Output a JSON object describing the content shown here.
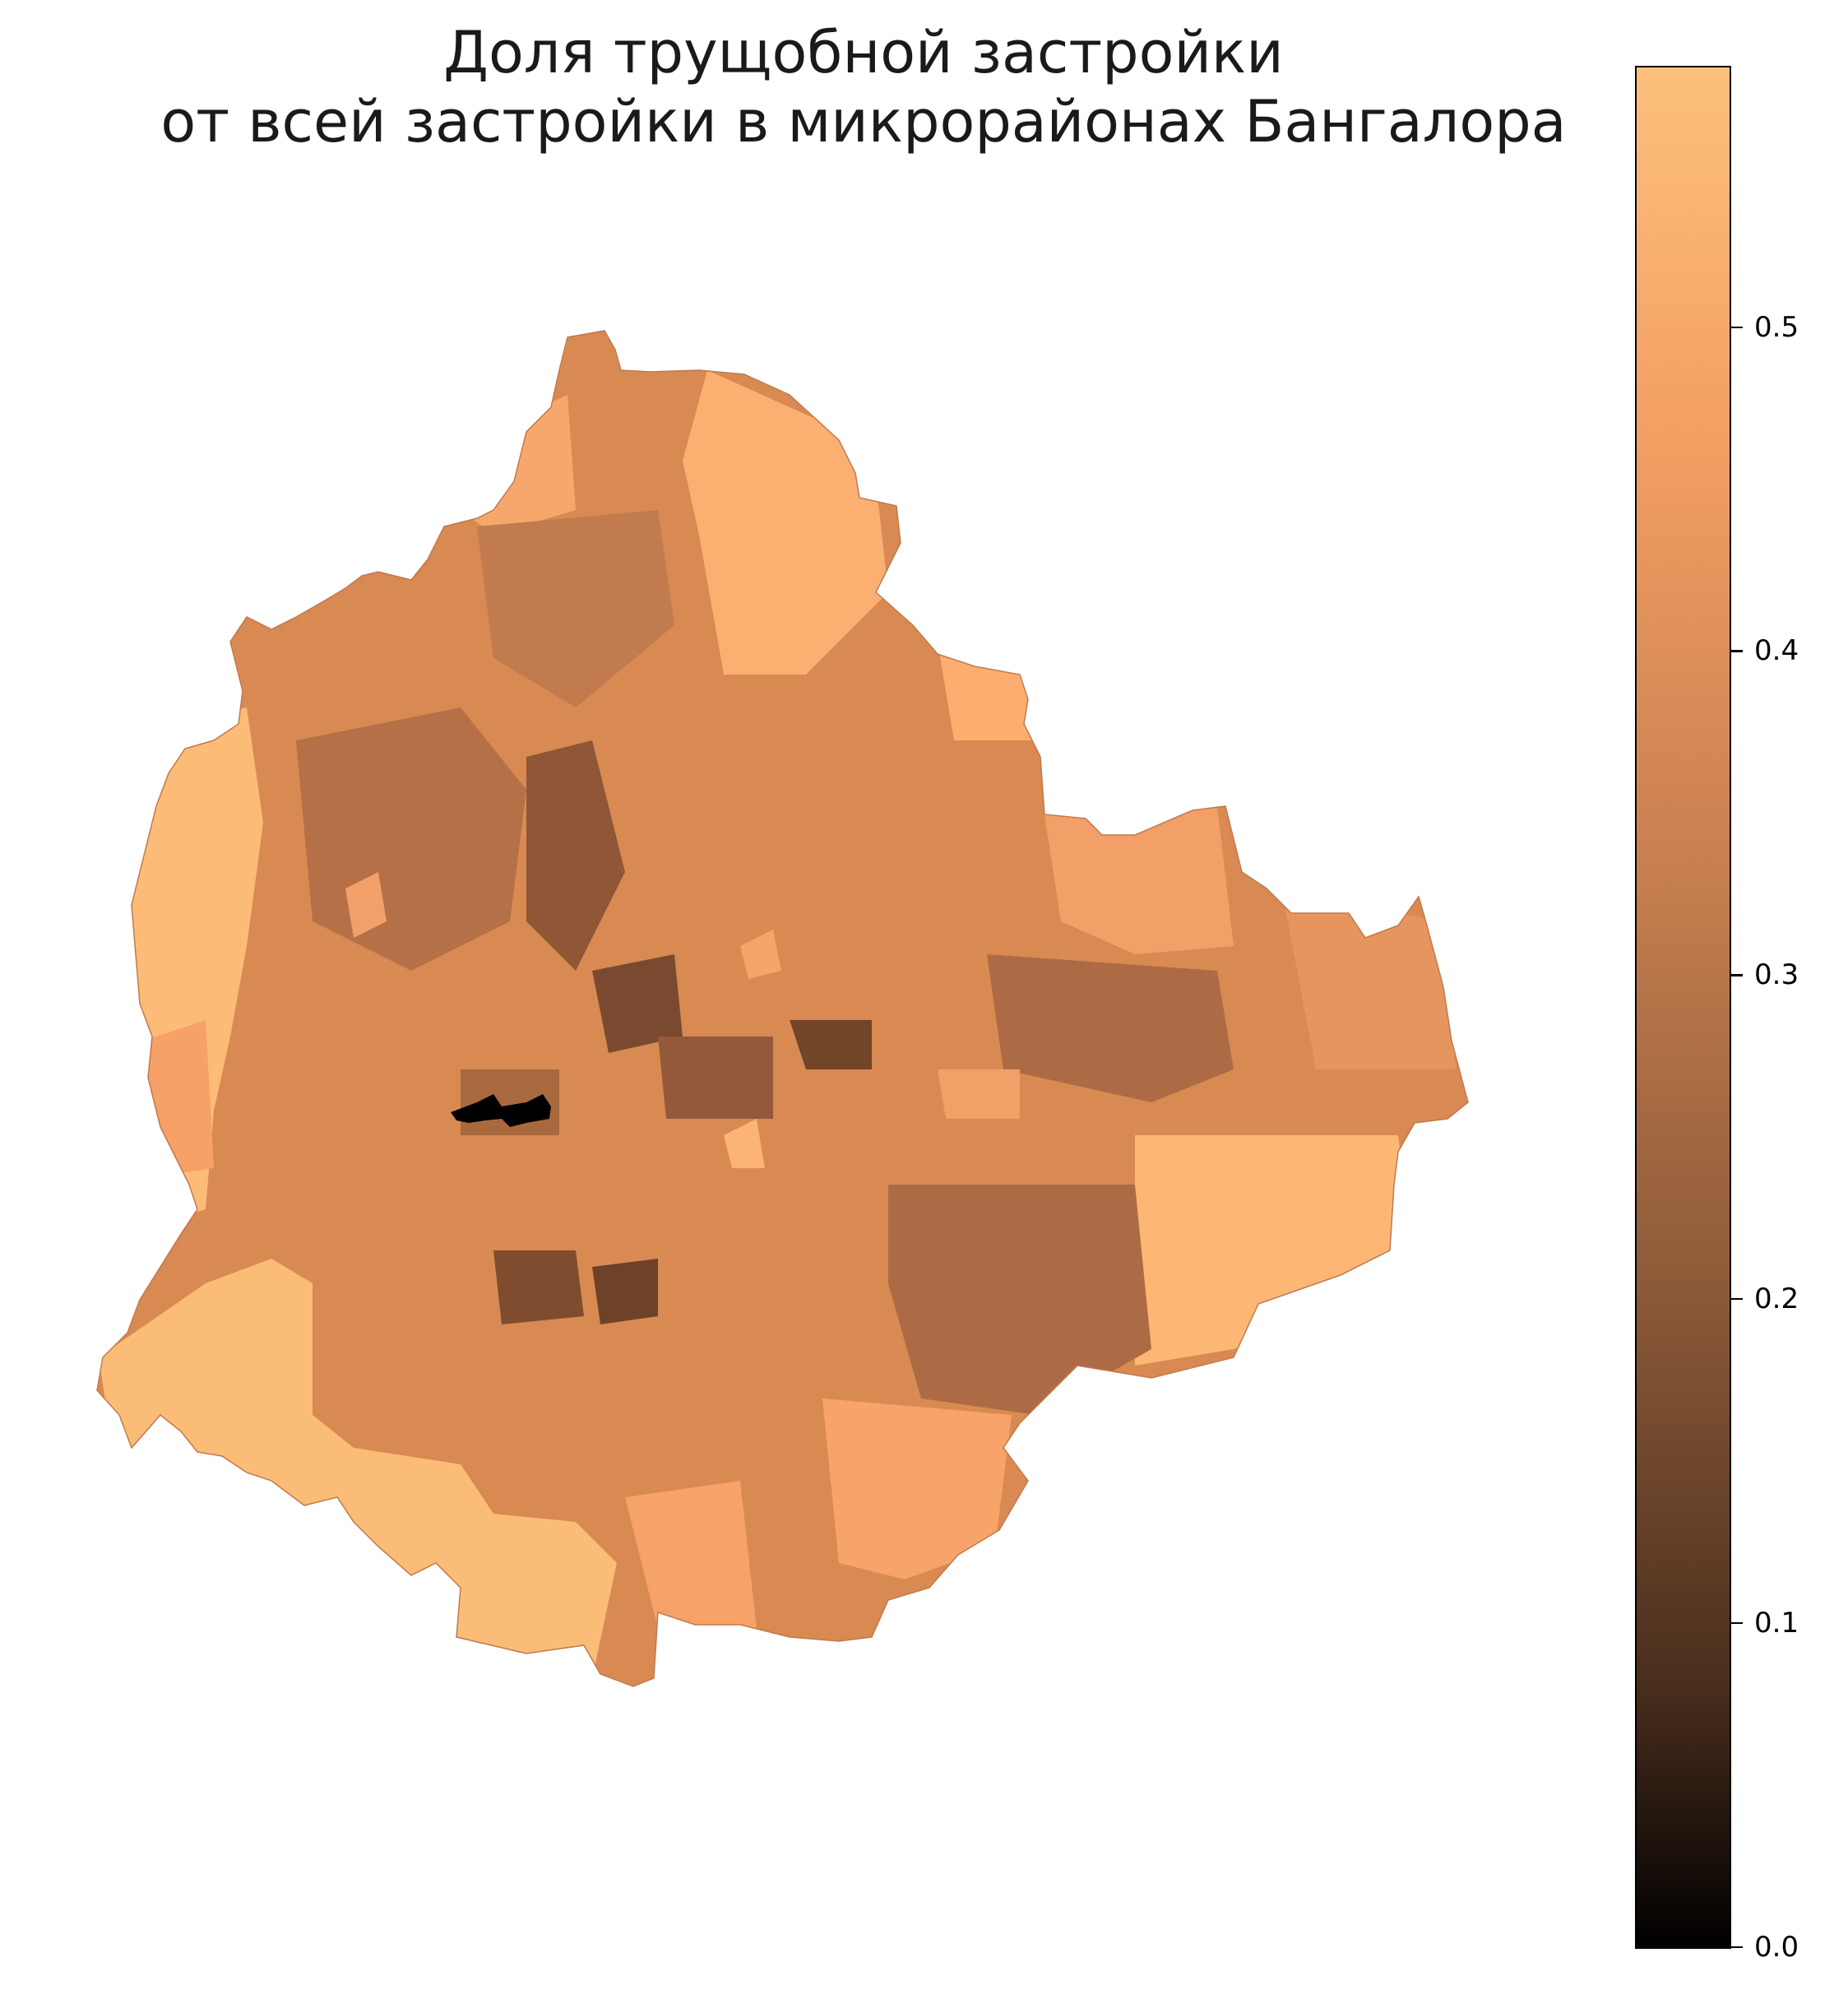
{
  "title": {
    "line1": "Доля трущобной застройки",
    "line2": "от всей застройки в микрорайонах Бангалора"
  },
  "colorbar": {
    "colormap": "copper",
    "range": [
      0.0,
      0.58
    ],
    "ticks": [
      "0.0",
      "0.1",
      "0.2",
      "0.3",
      "0.4",
      "0.5"
    ],
    "tick_values": [
      0.0,
      0.1,
      0.2,
      0.3,
      0.4,
      0.5
    ]
  },
  "map_data": {
    "type": "choropleth",
    "variable_range": [
      0.0,
      0.58
    ],
    "regions_level_examples": [
      {
        "area": "west periphery",
        "level": 0.56
      },
      {
        "area": "south-west periphery",
        "level": 0.55
      },
      {
        "area": "east periphery",
        "level": 0.55
      },
      {
        "area": "north-east",
        "level": 0.52
      },
      {
        "area": "centre, darkest ward",
        "level": 0.0
      },
      {
        "area": "centre-south cluster",
        "level": 0.25
      },
      {
        "area": "east-centre cluster",
        "level": 0.3
      }
    ]
  }
}
